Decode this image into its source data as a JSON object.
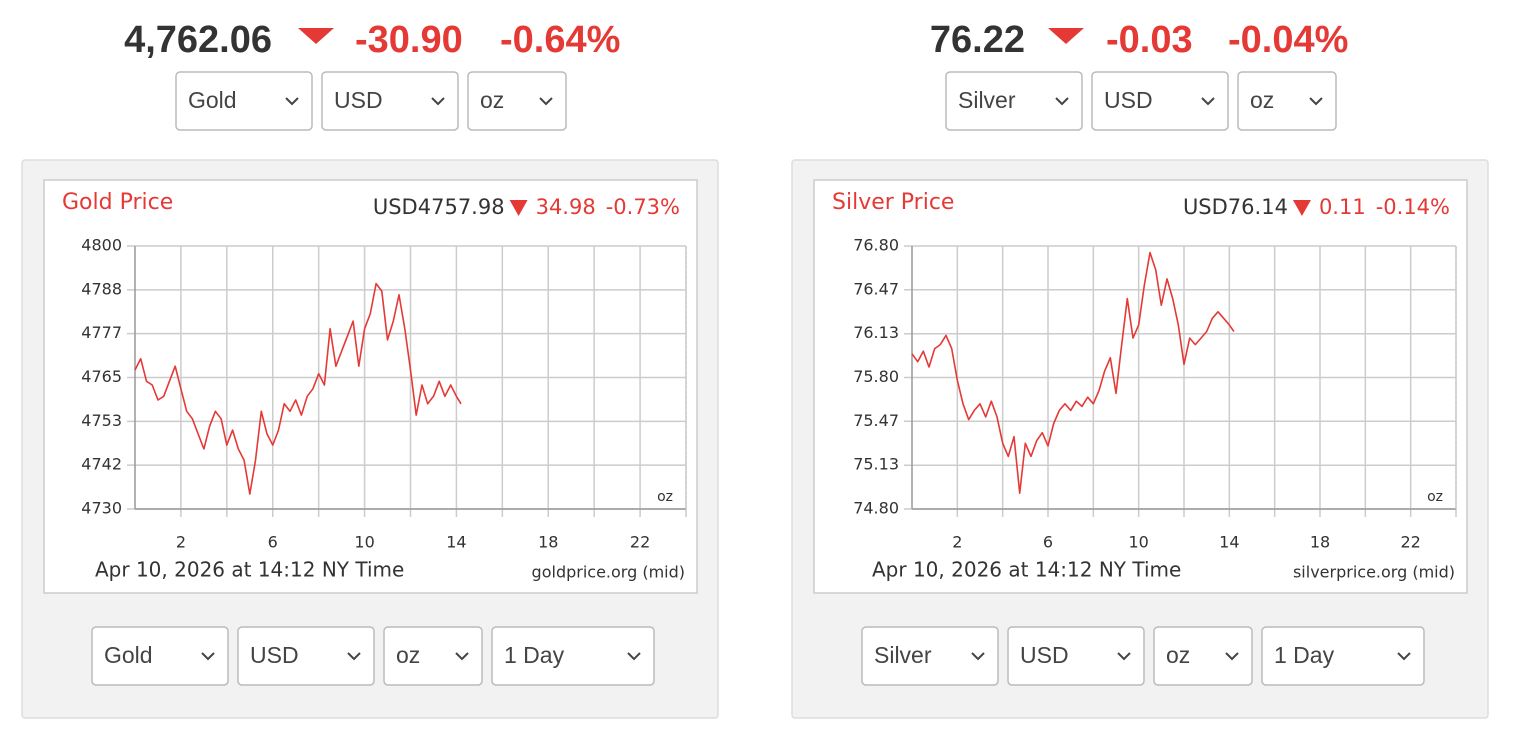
{
  "widgets": [
    {
      "price": "4,762.06",
      "change": "-30.90",
      "change_pct": "-0.64%",
      "selects": [
        "Gold",
        "USD",
        "oz"
      ],
      "bottom_selects": [
        "Gold",
        "USD",
        "oz",
        "1 Day"
      ]
    },
    {
      "price": "76.22",
      "change": "-0.03",
      "change_pct": "-0.04%",
      "selects": [
        "Silver",
        "USD",
        "oz"
      ],
      "bottom_selects": [
        "Silver",
        "USD",
        "oz",
        "1 Day"
      ]
    }
  ],
  "chart_data": [
    {
      "type": "line",
      "title": "Gold Price",
      "quote": "USD4757.98",
      "change": "34.98",
      "change_pct": "-0.73%",
      "unit": "oz",
      "xlabel": "Apr 10, 2026 at 14:12 NY Time",
      "source": "goldprice.org (mid)",
      "color": "#e53935",
      "grid": true,
      "xlim": [
        0,
        24
      ],
      "xticks": [
        2,
        6,
        10,
        14,
        18,
        22
      ],
      "xgrid": [
        4,
        8,
        12,
        16,
        20,
        24
      ],
      "ylim": [
        4730,
        4800
      ],
      "yticks": [
        4730,
        {
          "value": 4741.67,
          "label": "4742"
        },
        {
          "value": 4753.33,
          "label": "4753"
        },
        4765,
        {
          "value": 4776.67,
          "label": "4777"
        },
        {
          "value": 4788.33,
          "label": "4788"
        },
        4800
      ],
      "x": [
        0,
        0.25,
        0.5,
        0.75,
        1,
        1.25,
        1.5,
        1.75,
        2,
        2.25,
        2.5,
        2.75,
        3,
        3.25,
        3.5,
        3.75,
        4,
        4.25,
        4.5,
        4.75,
        5,
        5.25,
        5.5,
        5.75,
        6,
        6.25,
        6.5,
        6.75,
        7,
        7.25,
        7.5,
        7.75,
        8,
        8.25,
        8.5,
        8.75,
        9,
        9.25,
        9.5,
        9.75,
        10,
        10.25,
        10.5,
        10.75,
        11,
        11.25,
        11.5,
        11.75,
        12,
        12.25,
        12.5,
        12.75,
        13,
        13.25,
        13.5,
        13.75,
        14,
        14.2
      ],
      "values": [
        4767,
        4770,
        4764,
        4763,
        4759,
        4760,
        4764,
        4768,
        4762,
        4756,
        4754,
        4750,
        4746,
        4752,
        4756,
        4754,
        4747,
        4751,
        4746,
        4743,
        4734,
        4743,
        4756,
        4750,
        4747,
        4751,
        4758,
        4756,
        4759,
        4755,
        4760,
        4762,
        4766,
        4763,
        4778,
        4768,
        4772,
        4776,
        4780,
        4768,
        4778,
        4782,
        4790,
        4788,
        4775,
        4780,
        4787,
        4778,
        4767,
        4755,
        4763,
        4758,
        4760,
        4764,
        4760,
        4763,
        4760,
        4758
      ]
    },
    {
      "type": "line",
      "title": "Silver Price",
      "quote": "USD76.14",
      "change": "0.11",
      "change_pct": "-0.14%",
      "unit": "oz",
      "xlabel": "Apr 10, 2026 at 14:12 NY Time",
      "source": "silverprice.org (mid)",
      "color": "#e53935",
      "grid": true,
      "xlim": [
        0,
        24
      ],
      "xticks": [
        2,
        6,
        10,
        14,
        18,
        22
      ],
      "xgrid": [
        4,
        8,
        12,
        16,
        20,
        24
      ],
      "ylim": [
        74.8,
        76.8
      ],
      "yticks": [
        {
          "value": 74.8,
          "label": "74.80"
        },
        {
          "value": 75.133,
          "label": "75.13"
        },
        {
          "value": 75.467,
          "label": "75.47"
        },
        {
          "value": 75.8,
          "label": "75.80"
        },
        {
          "value": 76.133,
          "label": "76.13"
        },
        {
          "value": 76.467,
          "label": "76.47"
        },
        {
          "value": 76.8,
          "label": "76.80"
        }
      ],
      "x": [
        0,
        0.25,
        0.5,
        0.75,
        1,
        1.25,
        1.5,
        1.75,
        2,
        2.25,
        2.5,
        2.75,
        3,
        3.25,
        3.5,
        3.75,
        4,
        4.25,
        4.5,
        4.75,
        5,
        5.25,
        5.5,
        5.75,
        6,
        6.25,
        6.5,
        6.75,
        7,
        7.25,
        7.5,
        7.75,
        8,
        8.25,
        8.5,
        8.75,
        9,
        9.25,
        9.5,
        9.75,
        10,
        10.25,
        10.5,
        10.75,
        11,
        11.25,
        11.5,
        11.75,
        12,
        12.25,
        12.5,
        12.75,
        13,
        13.25,
        13.5,
        13.75,
        14,
        14.2
      ],
      "values": [
        75.98,
        75.92,
        76.0,
        75.88,
        76.02,
        76.05,
        76.12,
        76.02,
        75.78,
        75.6,
        75.48,
        75.55,
        75.6,
        75.5,
        75.62,
        75.5,
        75.3,
        75.2,
        75.35,
        74.92,
        75.3,
        75.2,
        75.32,
        75.38,
        75.28,
        75.45,
        75.55,
        75.6,
        75.55,
        75.62,
        75.58,
        75.65,
        75.6,
        75.7,
        75.85,
        75.95,
        75.68,
        76.05,
        76.4,
        76.1,
        76.2,
        76.5,
        76.75,
        76.62,
        76.35,
        76.55,
        76.4,
        76.2,
        75.9,
        76.1,
        76.05,
        76.1,
        76.15,
        76.25,
        76.3,
        76.25,
        76.2,
        76.15
      ]
    }
  ]
}
